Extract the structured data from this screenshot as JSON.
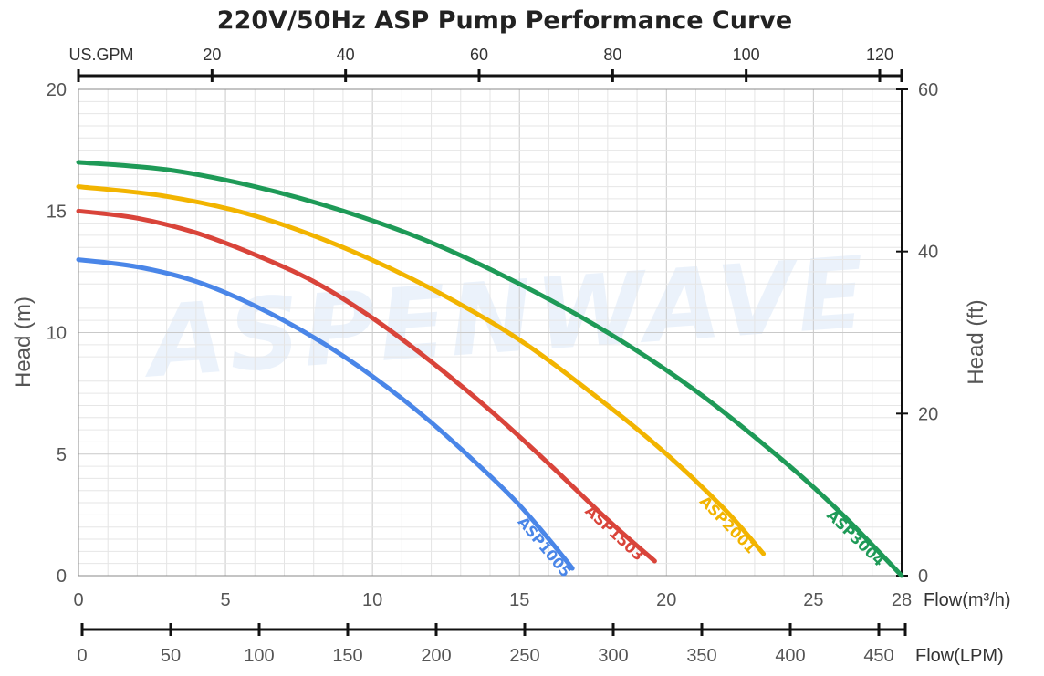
{
  "chart_data": {
    "type": "line",
    "title": "220V/50Hz ASP Pump Performance Curve",
    "watermark": "ASPENWAVE",
    "ylabel": "Head (m)",
    "ylabel_right": "Head (ft)",
    "x_unit_label": "Flow(m³/h)",
    "lpm_unit_label": "Flow(LPM)",
    "gpm_unit_label": "US.GPM",
    "xlim": [
      0,
      28
    ],
    "ylim": [
      0,
      20
    ],
    "ylim_right": [
      0,
      60
    ],
    "x_ticks": [
      0,
      5,
      10,
      15,
      20,
      25,
      28
    ],
    "y_ticks": [
      0,
      5,
      10,
      15,
      20
    ],
    "y_right_ticks": [
      0,
      20,
      40,
      60
    ],
    "gpm_ticks": [
      20,
      40,
      60,
      80,
      100,
      120
    ],
    "lpm_ticks": [
      0,
      50,
      100,
      150,
      200,
      250,
      300,
      350,
      400,
      450
    ],
    "grid": true,
    "series": [
      {
        "name": "ASP1005",
        "color": "#4a86e8",
        "x": [
          0,
          2,
          4,
          6,
          8,
          10,
          12,
          14,
          15,
          16,
          16.8
        ],
        "y": [
          13.0,
          12.7,
          12.1,
          11.1,
          9.8,
          8.2,
          6.3,
          4.1,
          2.9,
          1.5,
          0.3
        ]
      },
      {
        "name": "ASP1503",
        "color": "#d9443a",
        "x": [
          0,
          2,
          4,
          6,
          8,
          10,
          12,
          14,
          16,
          18,
          19.6
        ],
        "y": [
          15.0,
          14.7,
          14.1,
          13.2,
          12.1,
          10.6,
          8.8,
          6.8,
          4.6,
          2.3,
          0.6
        ]
      },
      {
        "name": "ASP2001",
        "color": "#f2b400",
        "x": [
          0,
          3,
          6,
          9,
          12,
          15,
          18,
          20,
          22,
          23.3
        ],
        "y": [
          16.0,
          15.6,
          14.8,
          13.5,
          11.8,
          9.7,
          7.0,
          5.0,
          2.7,
          0.9
        ]
      },
      {
        "name": "ASP3004",
        "color": "#1e9a57",
        "x": [
          0,
          3,
          6,
          9,
          12,
          15,
          18,
          21,
          24,
          26,
          28
        ],
        "y": [
          17.0,
          16.7,
          16.0,
          15.0,
          13.7,
          12.0,
          10.0,
          7.6,
          4.7,
          2.5,
          0.0
        ]
      }
    ]
  }
}
